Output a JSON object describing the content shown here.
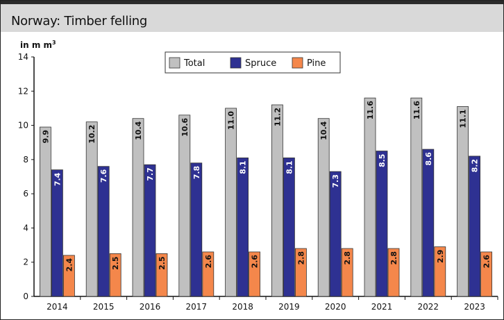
{
  "header": {
    "title": "Norway: Timber felling"
  },
  "chart_data": {
    "type": "bar",
    "title": "Norway: Timber felling",
    "ylabel": "in m m",
    "ylabel_superscript": "3",
    "xlabel": "",
    "ylim": [
      0,
      14
    ],
    "yticks": [
      0,
      2,
      4,
      6,
      8,
      10,
      12,
      14
    ],
    "grid": false,
    "legend": "top-center",
    "categories": [
      "2014",
      "2015",
      "2016",
      "2017",
      "2018",
      "2019",
      "2020",
      "2021",
      "2022",
      "2023"
    ],
    "series": [
      {
        "name": "Total",
        "color": "#c0c0c0",
        "label_color": "#111111",
        "values": [
          9.9,
          10.2,
          10.4,
          10.6,
          11.0,
          11.2,
          10.4,
          11.6,
          11.6,
          11.1
        ],
        "labels": [
          "9.9",
          "10.2",
          "10.4",
          "10.6",
          "11.0",
          "11.2",
          "10.4",
          "11.6",
          "11.6",
          "11.1"
        ]
      },
      {
        "name": "Spruce",
        "color": "#2e3192",
        "label_color": "#ffffff",
        "values": [
          7.4,
          7.6,
          7.7,
          7.8,
          8.1,
          8.1,
          7.3,
          8.5,
          8.6,
          8.2
        ],
        "labels": [
          "7.4",
          "7.6",
          "7.7",
          "7.8",
          "8.1",
          "8.1",
          "7.3",
          "8.5",
          "8.6",
          "8.2"
        ]
      },
      {
        "name": "Pine",
        "color": "#f4874b",
        "label_color": "#111111",
        "values": [
          2.4,
          2.5,
          2.5,
          2.6,
          2.6,
          2.8,
          2.8,
          2.8,
          2.9,
          2.6
        ],
        "labels": [
          "2.4",
          "2.5",
          "2.5",
          "2.6",
          "2.6",
          "2.8",
          "2.8",
          "2.8",
          "2.9",
          "2.6"
        ]
      }
    ]
  }
}
